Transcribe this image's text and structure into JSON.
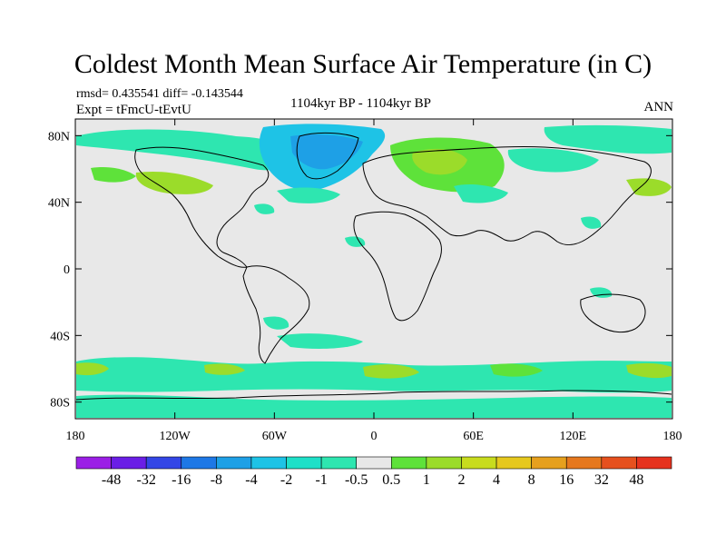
{
  "header": {
    "title": "Coldest Month Mean Surface Air Temperature (in C)",
    "stats": "rmsd= 0.435541 diff= -0.143544",
    "experiment": "Expt = tFmcU-tEvtU",
    "subtitle": "1104kyr BP - 1104kyr BP",
    "period": "ANN"
  },
  "map": {
    "lat_ticks": [
      "80N",
      "40N",
      "0",
      "40S",
      "80S"
    ],
    "lat_values": [
      80,
      40,
      0,
      -40,
      -80
    ],
    "lon_ticks": [
      "180",
      "120W",
      "60W",
      "0",
      "60E",
      "120E",
      "180"
    ],
    "lon_values": [
      -180,
      -120,
      -60,
      0,
      60,
      120,
      180
    ],
    "lat_range": [
      -90,
      90
    ],
    "lon_range": [
      -180,
      180
    ],
    "background_color": "#e8e8e8",
    "coastline_color": "#000000"
  },
  "colorbar": {
    "colors": [
      "#9b1fe6",
      "#6a1ee6",
      "#3346e6",
      "#1e78e6",
      "#1ea0e6",
      "#1ec3e6",
      "#1ee0c8",
      "#2ee6b0",
      "#e8e8e8",
      "#5ee23a",
      "#9bdc2a",
      "#c8dc1e",
      "#e6c81e",
      "#e6a01e",
      "#e6781e",
      "#e6501e",
      "#e6321e"
    ],
    "labels": [
      "-48",
      "-32",
      "-16",
      "-8",
      "-4",
      "-2",
      "-1",
      "-0.5",
      "0.5",
      "1",
      "2",
      "4",
      "8",
      "16",
      "32",
      "48"
    ]
  }
}
